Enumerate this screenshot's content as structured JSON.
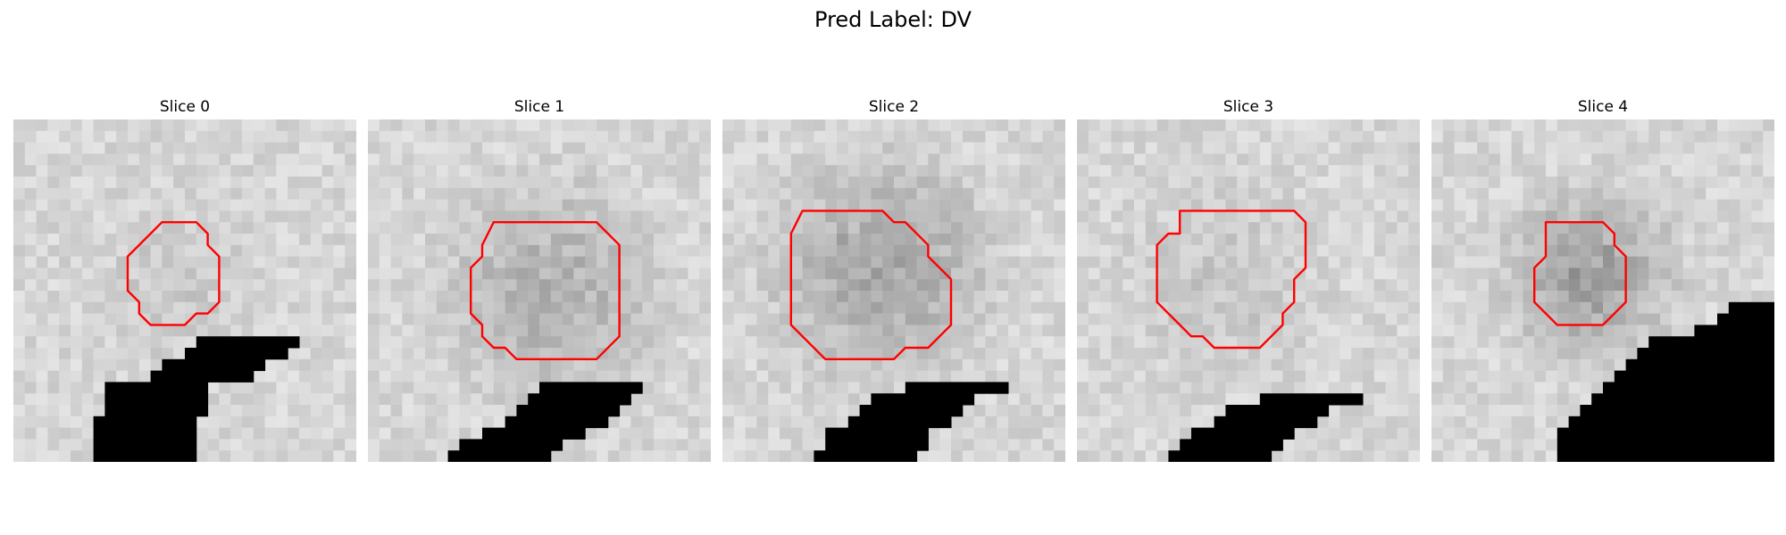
{
  "figure": {
    "title": "Pred Label: DV",
    "contour_color": "#ff0000",
    "mask_color": "#000000"
  },
  "slices": [
    {
      "title": "Slice 0",
      "center": [
        14,
        14
      ],
      "radius": 7.0,
      "darkness": 0.05,
      "contour": [
        [
          13,
          9
        ],
        [
          16,
          9
        ],
        [
          17,
          10
        ],
        [
          17,
          11
        ],
        [
          18,
          12
        ],
        [
          18,
          16
        ],
        [
          17,
          17
        ],
        [
          16,
          17
        ],
        [
          15,
          18
        ],
        [
          12,
          18
        ],
        [
          11,
          17
        ],
        [
          11,
          16
        ],
        [
          10,
          15
        ],
        [
          10,
          12
        ],
        [
          12,
          10
        ]
      ],
      "mask": [
        [
          19,
          16,
          9
        ],
        [
          20,
          15,
          9
        ],
        [
          21,
          13,
          9
        ],
        [
          22,
          12,
          9
        ],
        [
          23,
          8,
          9
        ],
        [
          24,
          8,
          9
        ],
        [
          25,
          8,
          9
        ],
        [
          26,
          7,
          9
        ],
        [
          27,
          7,
          9
        ],
        [
          28,
          7,
          9
        ],
        [
          29,
          7,
          9
        ]
      ]
    },
    {
      "title": "Slice 1",
      "center": [
        16,
        15
      ],
      "radius": 9.5,
      "darkness": 0.17,
      "contour": [
        [
          11,
          9
        ],
        [
          20,
          9
        ],
        [
          21,
          10
        ],
        [
          22,
          11
        ],
        [
          22,
          19
        ],
        [
          20,
          21
        ],
        [
          13,
          21
        ],
        [
          12,
          20
        ],
        [
          11,
          20
        ],
        [
          10,
          19
        ],
        [
          10,
          18
        ],
        [
          9,
          17
        ],
        [
          9,
          13
        ],
        [
          10,
          12
        ],
        [
          10,
          11
        ]
      ],
      "mask": [
        [
          23,
          15,
          9
        ],
        [
          24,
          14,
          9
        ],
        [
          25,
          13,
          9
        ],
        [
          26,
          12,
          9
        ],
        [
          27,
          10,
          9
        ],
        [
          28,
          8,
          9
        ],
        [
          29,
          7,
          9
        ]
      ]
    },
    {
      "title": "Slice 2",
      "center": [
        14,
        13
      ],
      "radius": 9.5,
      "darkness": 0.22,
      "contour": [
        [
          7,
          8
        ],
        [
          14,
          8
        ],
        [
          15,
          9
        ],
        [
          16,
          9
        ],
        [
          18,
          11
        ],
        [
          18,
          12
        ],
        [
          20,
          14
        ],
        [
          20,
          18
        ],
        [
          18,
          20
        ],
        [
          16,
          20
        ],
        [
          15,
          21
        ],
        [
          14,
          21
        ],
        [
          14,
          21
        ],
        [
          11,
          21
        ],
        [
          9,
          21
        ],
        [
          6,
          18
        ],
        [
          6,
          10
        ]
      ],
      "mask": [
        [
          23,
          16,
          9
        ],
        [
          24,
          13,
          9
        ],
        [
          25,
          12,
          9
        ],
        [
          26,
          11,
          9
        ],
        [
          27,
          9,
          9
        ],
        [
          28,
          9,
          9
        ],
        [
          29,
          8,
          9
        ]
      ]
    },
    {
      "title": "Slice 3",
      "center": [
        13,
        14
      ],
      "radius": 7.5,
      "darkness": 0.07,
      "contour": [
        [
          9,
          8
        ],
        [
          19,
          8
        ],
        [
          20,
          9
        ],
        [
          20,
          13
        ],
        [
          19,
          14
        ],
        [
          19,
          16
        ],
        [
          18,
          17
        ],
        [
          18,
          18
        ],
        [
          16,
          20
        ],
        [
          12,
          20
        ],
        [
          11,
          19
        ],
        [
          10,
          19
        ],
        [
          9,
          18
        ],
        [
          8,
          17
        ],
        [
          7,
          16
        ],
        [
          7,
          11
        ],
        [
          8,
          10
        ],
        [
          9,
          10
        ]
      ],
      "mask": [
        [
          24,
          16,
          9
        ],
        [
          25,
          13,
          9
        ],
        [
          26,
          12,
          9
        ],
        [
          27,
          10,
          9
        ],
        [
          28,
          9,
          9
        ],
        [
          29,
          8,
          9
        ]
      ]
    },
    {
      "title": "Slice 4",
      "center": [
        14,
        13.5
      ],
      "radius": 6.5,
      "darkness": 0.25,
      "contour": [
        [
          10,
          9
        ],
        [
          15,
          9
        ],
        [
          16,
          10
        ],
        [
          16,
          11
        ],
        [
          17,
          12
        ],
        [
          17,
          16
        ],
        [
          16,
          17
        ],
        [
          15,
          18
        ],
        [
          12,
          18
        ],
        [
          11,
          18
        ],
        [
          9,
          16
        ],
        [
          9,
          13
        ],
        [
          10,
          12
        ],
        [
          10,
          11
        ]
      ],
      "mask": [
        [
          16,
          26,
          4
        ],
        [
          17,
          25,
          5
        ],
        [
          18,
          23,
          7
        ],
        [
          19,
          19,
          11
        ],
        [
          20,
          18,
          12
        ],
        [
          21,
          17,
          13
        ],
        [
          22,
          16,
          14
        ],
        [
          23,
          15,
          15
        ],
        [
          24,
          14,
          16
        ],
        [
          25,
          13,
          17
        ],
        [
          26,
          12,
          18
        ],
        [
          27,
          11,
          19
        ],
        [
          28,
          11,
          19
        ],
        [
          29,
          11,
          19
        ]
      ]
    }
  ]
}
